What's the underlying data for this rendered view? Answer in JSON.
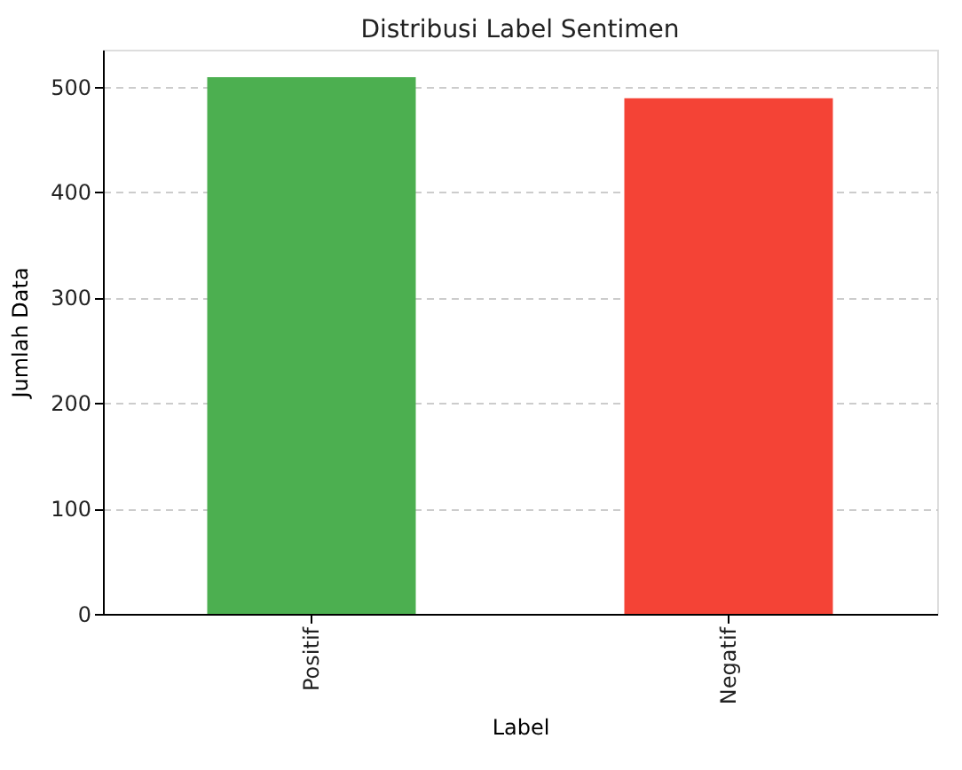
{
  "chart_data": {
    "type": "bar",
    "title": "Distribusi Label Sentimen",
    "xlabel": "Label",
    "ylabel": "Jumlah Data",
    "categories": [
      "Positif",
      "Negatif"
    ],
    "values": [
      509,
      489
    ],
    "colors": [
      "#4caf50",
      "#f44336"
    ],
    "ylim": [
      0,
      535
    ],
    "yticks": [
      0,
      100,
      200,
      300,
      400,
      500
    ],
    "grid": "y"
  }
}
